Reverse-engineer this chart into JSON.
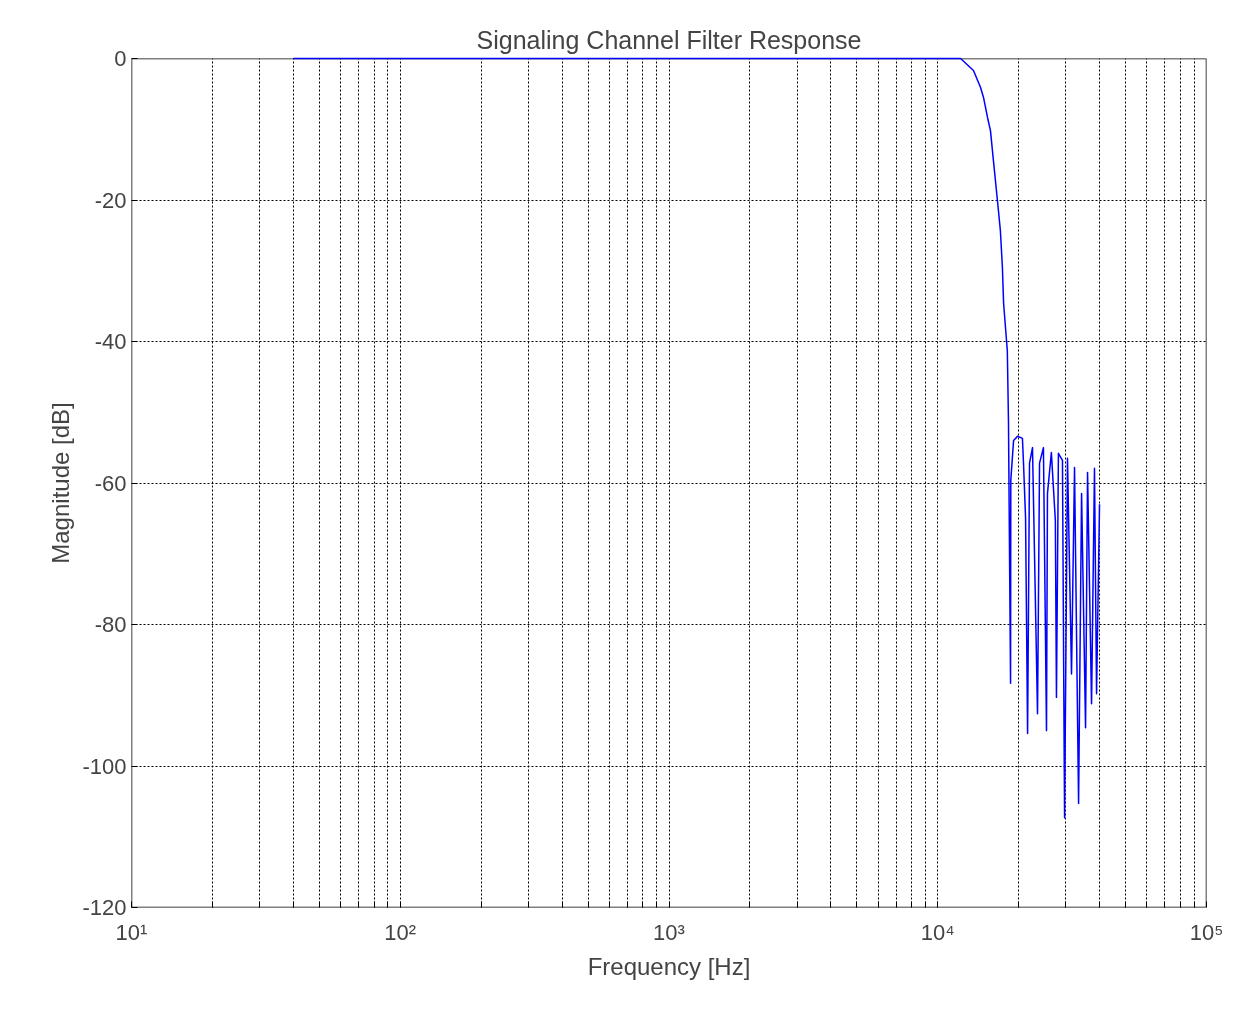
{
  "chart_data": {
    "type": "line",
    "title": "Signaling Channel Filter Response",
    "xlabel": "Frequency [Hz]",
    "ylabel": "Magnitude [dB]",
    "log": "x",
    "grid": true,
    "marker": "none",
    "line_style": "solid",
    "xlim": [
      10,
      100000
    ],
    "ylim": [
      -120,
      0
    ],
    "xticks": [
      {
        "value": 10,
        "label": "10¹"
      },
      {
        "value": 20,
        "label": null
      },
      {
        "value": 30,
        "label": null
      },
      {
        "value": 40,
        "label": null
      },
      {
        "value": 50,
        "label": null
      },
      {
        "value": 60,
        "label": null
      },
      {
        "value": 70,
        "label": null
      },
      {
        "value": 80,
        "label": null
      },
      {
        "value": 90,
        "label": null
      },
      {
        "value": 100,
        "label": "10²"
      },
      {
        "value": 200,
        "label": null
      },
      {
        "value": 300,
        "label": null
      },
      {
        "value": 400,
        "label": null
      },
      {
        "value": 500,
        "label": null
      },
      {
        "value": 600,
        "label": null
      },
      {
        "value": 700,
        "label": null
      },
      {
        "value": 800,
        "label": null
      },
      {
        "value": 900,
        "label": null
      },
      {
        "value": 1000,
        "label": "10³"
      },
      {
        "value": 2000,
        "label": null
      },
      {
        "value": 3000,
        "label": null
      },
      {
        "value": 4000,
        "label": null
      },
      {
        "value": 5000,
        "label": null
      },
      {
        "value": 6000,
        "label": null
      },
      {
        "value": 7000,
        "label": null
      },
      {
        "value": 8000,
        "label": null
      },
      {
        "value": 9000,
        "label": null
      },
      {
        "value": 10000,
        "label": "10⁴"
      },
      {
        "value": 20000,
        "label": null
      },
      {
        "value": 30000,
        "label": null
      },
      {
        "value": 40000,
        "label": null
      },
      {
        "value": 50000,
        "label": null
      },
      {
        "value": 60000,
        "label": null
      },
      {
        "value": 70000,
        "label": null
      },
      {
        "value": 80000,
        "label": null
      },
      {
        "value": 90000,
        "label": null
      },
      {
        "value": 100000,
        "label": "10⁵"
      }
    ],
    "yticks": [
      -120,
      -100,
      -80,
      -60,
      -40,
      -20,
      0
    ],
    "series": [
      {
        "color": "#0000ff",
        "x": [
          40,
          1000,
          11800,
          12160,
          13580,
          14430,
          14800,
          15310,
          15710,
          16110,
          16680,
          17100,
          17400,
          17580,
          18150,
          18330,
          18660,
          18700,
          19150,
          19810,
          20660,
          20850,
          21220,
          21590,
          21950,
          22520,
          23510,
          23920,
          24730,
          25390,
          25600,
          26470,
          27390,
          27650,
          28120,
          29110,
          29640,
          30390,
          31460,
          32280,
          33420,
          34290,
          35480,
          36090,
          37350,
          38300,
          38990,
          39990
        ],
        "values": [
          0,
          0,
          0,
          0,
          -1.7,
          -4.1,
          -5.5,
          -8.3,
          -10.2,
          -14.4,
          -20.1,
          -24.3,
          -29.5,
          -34.6,
          -41.3,
          -51.2,
          -88.3,
          -59.6,
          -54,
          -53.4,
          -53.7,
          -57.2,
          -64.9,
          -95.4,
          -57.2,
          -55,
          -92.6,
          -57.2,
          -55,
          -95,
          -61.5,
          -55.7,
          -65.3,
          -90.3,
          -55.8,
          -56.8,
          -107.3,
          -56.5,
          -87,
          -57.8,
          -105.3,
          -61.5,
          -94.6,
          -58.5,
          -91.2,
          -57.9,
          -89.8,
          -63
        ]
      }
    ]
  }
}
